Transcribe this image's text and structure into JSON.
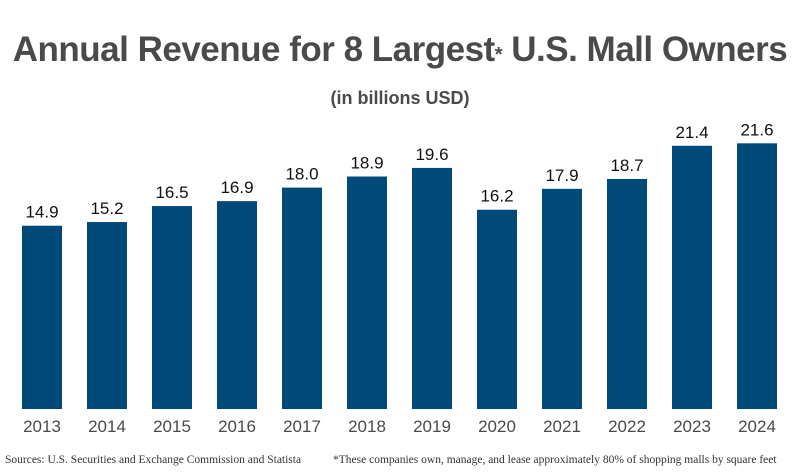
{
  "title_main": "Annual Revenue for 8 Largest",
  "title_star": "*",
  "title_rest": " U.S. Mall Owners",
  "subtitle": "(in billions USD)",
  "sources": "Sources: U.S. Securities and Exchange Commission and Statista",
  "footnote": "*These companies own, manage, and lease approximately 80% of shopping malls by square feet",
  "chart_data": {
    "type": "bar",
    "title": "Annual Revenue for 8 Largest* U.S. Mall Owners",
    "subtitle": "(in billions USD)",
    "categories": [
      "2013",
      "2014",
      "2015",
      "2016",
      "2017",
      "2018",
      "2019",
      "2020",
      "2021",
      "2022",
      "2023",
      "2024"
    ],
    "values": [
      14.9,
      15.2,
      16.5,
      16.9,
      18.0,
      18.9,
      19.6,
      16.2,
      17.9,
      18.7,
      21.4,
      21.6
    ],
    "labels": [
      "14.9",
      "15.2",
      "16.5",
      "16.9",
      "18.0",
      "18.9",
      "19.6",
      "16.2",
      "17.9",
      "18.7",
      "21.4",
      "21.6"
    ],
    "ylim": [
      0,
      21.6
    ],
    "grid": false,
    "bar_color": "#004a7a"
  }
}
